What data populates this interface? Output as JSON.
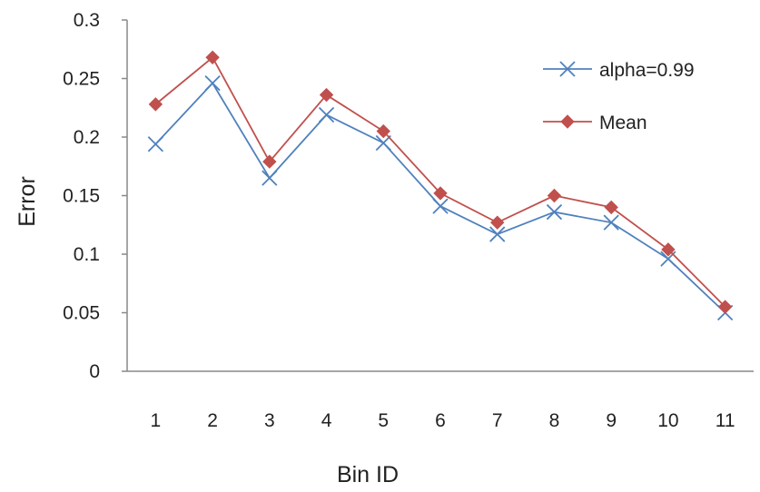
{
  "chart_data": {
    "type": "line",
    "categories": [
      "1",
      "2",
      "3",
      "4",
      "5",
      "6",
      "7",
      "8",
      "9",
      "10",
      "11"
    ],
    "series": [
      {
        "name": "alpha=0.99",
        "color": "#4f81bd",
        "marker": "x",
        "values": [
          0.194,
          0.246,
          0.165,
          0.219,
          0.195,
          0.141,
          0.117,
          0.136,
          0.127,
          0.096,
          0.05
        ]
      },
      {
        "name": "Mean",
        "color": "#c0504d",
        "marker": "diamond",
        "values": [
          0.228,
          0.268,
          0.179,
          0.236,
          0.205,
          0.152,
          0.127,
          0.15,
          0.14,
          0.104,
          0.055
        ]
      }
    ],
    "xlabel": "Bin ID",
    "ylabel": "Error",
    "ylim": [
      0,
      0.3
    ],
    "yticks": [
      "0",
      "0.05",
      "0.1",
      "0.15",
      "0.2",
      "0.25",
      "0.3"
    ],
    "grid": false,
    "legend_position": "top-right"
  }
}
